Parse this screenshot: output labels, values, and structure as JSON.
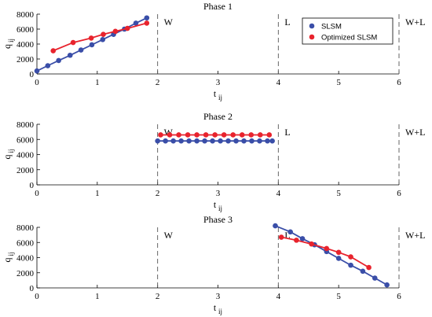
{
  "colors": {
    "slsm": "#3a4ea8",
    "optimized": "#e8232d"
  },
  "chart_data": [
    {
      "type": "line",
      "title": "Phase 1",
      "xlabel": "t",
      "xlabel_sub": "ij",
      "ylabel": "q",
      "ylabel_sub": "ij",
      "xlim": [
        0,
        6
      ],
      "ylim": [
        0,
        8000
      ],
      "xticks": [
        0,
        1,
        2,
        3,
        4,
        5,
        6
      ],
      "yticks": [
        0,
        2000,
        4000,
        6000,
        8000
      ],
      "vlines": [
        2,
        4,
        6
      ],
      "regions": [
        {
          "x": 2,
          "label": "W"
        },
        {
          "x": 4,
          "label": "L"
        },
        {
          "x": 6,
          "label": "W+L"
        }
      ],
      "legend": {
        "placement": "top-right",
        "entries": [
          "SLSM",
          "Optimized SLSM"
        ]
      },
      "series": [
        {
          "name": "SLSM",
          "x": [
            0,
            0.18,
            0.36,
            0.55,
            0.73,
            0.91,
            1.09,
            1.27,
            1.45,
            1.64,
            1.82
          ],
          "y": [
            400,
            1100,
            1800,
            2500,
            3200,
            3900,
            4600,
            5300,
            6000,
            6800,
            7500
          ]
        },
        {
          "name": "Optimized SLSM",
          "x": [
            0.27,
            0.6,
            0.9,
            1.1,
            1.3,
            1.5,
            1.82
          ],
          "y": [
            3100,
            4200,
            4800,
            5300,
            5700,
            6100,
            6800
          ]
        }
      ]
    },
    {
      "type": "line",
      "title": "Phase 2",
      "xlabel": "t",
      "xlabel_sub": "ij",
      "ylabel": "q",
      "ylabel_sub": "ij",
      "xlim": [
        0,
        6
      ],
      "ylim": [
        0,
        8000
      ],
      "xticks": [
        0,
        1,
        2,
        3,
        4,
        5,
        6
      ],
      "yticks": [
        0,
        2000,
        4000,
        6000,
        8000
      ],
      "vlines": [
        2,
        4,
        6
      ],
      "regions": [
        {
          "x": 2,
          "label": "W"
        },
        {
          "x": 4,
          "label": "L"
        },
        {
          "x": 6,
          "label": "W+L"
        }
      ],
      "series": [
        {
          "name": "SLSM",
          "x": [
            2.0,
            2.13,
            2.26,
            2.39,
            2.52,
            2.65,
            2.78,
            2.91,
            3.04,
            3.17,
            3.3,
            3.43,
            3.56,
            3.69,
            3.82,
            3.9
          ],
          "y": [
            5800,
            5800,
            5800,
            5800,
            5800,
            5800,
            5800,
            5800,
            5800,
            5800,
            5800,
            5800,
            5800,
            5800,
            5800,
            5800
          ]
        },
        {
          "name": "Optimized SLSM",
          "x": [
            2.05,
            2.2,
            2.35,
            2.5,
            2.65,
            2.8,
            2.95,
            3.1,
            3.25,
            3.4,
            3.55,
            3.7,
            3.85
          ],
          "y": [
            6600,
            6600,
            6600,
            6600,
            6600,
            6600,
            6600,
            6600,
            6600,
            6600,
            6600,
            6600,
            6600
          ]
        }
      ]
    },
    {
      "type": "line",
      "title": "Phase 3",
      "xlabel": "t",
      "xlabel_sub": "ij",
      "ylabel": "q",
      "ylabel_sub": "ij",
      "xlim": [
        0,
        6
      ],
      "ylim": [
        0,
        8000
      ],
      "xticks": [
        0,
        1,
        2,
        3,
        4,
        5,
        6
      ],
      "yticks": [
        0,
        2000,
        4000,
        6000,
        8000
      ],
      "vlines": [
        2,
        4,
        6
      ],
      "regions": [
        {
          "x": 2,
          "label": "W"
        },
        {
          "x": 4,
          "label": "L"
        },
        {
          "x": 6,
          "label": "W+L"
        }
      ],
      "series": [
        {
          "name": "SLSM",
          "x": [
            3.95,
            4.2,
            4.4,
            4.6,
            4.8,
            5.0,
            5.2,
            5.4,
            5.6,
            5.8
          ],
          "y": [
            8200,
            7400,
            6500,
            5700,
            4800,
            3900,
            3000,
            2200,
            1300,
            400
          ]
        },
        {
          "name": "Optimized SLSM",
          "x": [
            4.05,
            4.3,
            4.55,
            4.8,
            5.0,
            5.2,
            5.5
          ],
          "y": [
            6700,
            6300,
            5800,
            5200,
            4700,
            4100,
            2700
          ]
        }
      ]
    }
  ]
}
